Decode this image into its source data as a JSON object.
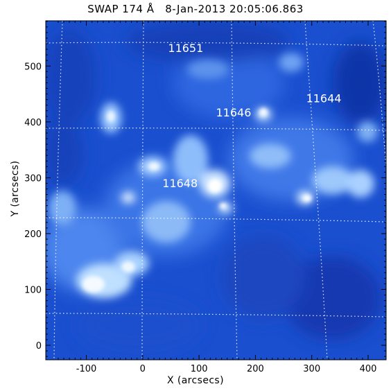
{
  "title": "SWAP 174 Å   8-Jan-2013 20:05:06.863",
  "xlabel": "X (arcsecs)",
  "ylabel": "Y (arcsecs)",
  "x_ticks": [
    "-100",
    "0",
    "100",
    "200",
    "300",
    "400"
  ],
  "y_ticks": [
    "0",
    "100",
    "200",
    "300",
    "400",
    "500"
  ],
  "active_regions": [
    {
      "label": "11651",
      "x": 45,
      "y": 525
    },
    {
      "label": "11646",
      "x": 130,
      "y": 410
    },
    {
      "label": "11644",
      "x": 290,
      "y": 435
    },
    {
      "label": "11648",
      "x": 35,
      "y": 283
    }
  ],
  "colors": {
    "background": "#ffffff",
    "sun_dark": "#0a2a9a",
    "sun_mid": "#1f5ad8",
    "sun_bright": "#dff0ff",
    "grid": "#ffffff"
  }
}
